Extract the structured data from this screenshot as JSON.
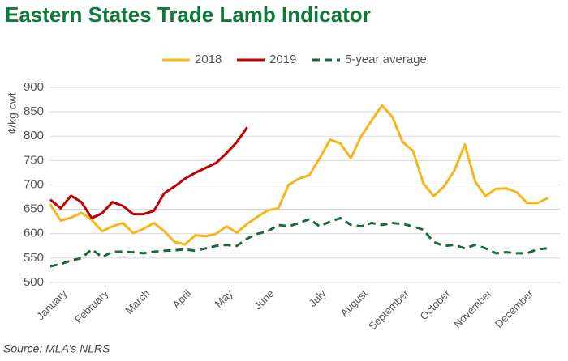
{
  "chart_data": {
    "type": "line",
    "title": "Eastern States Trade Lamb Indicator",
    "y_label": "¢/kg cwt",
    "source": "Source: MLA’s NLRS",
    "categories": [
      null,
      "January",
      null,
      null,
      null,
      "February",
      null,
      null,
      null,
      "March",
      null,
      null,
      null,
      "April",
      null,
      null,
      null,
      "May",
      null,
      null,
      null,
      "June",
      null,
      null,
      null,
      null,
      "July",
      null,
      null,
      null,
      "August",
      null,
      null,
      null,
      "September",
      null,
      null,
      null,
      "October",
      null,
      null,
      null,
      "November",
      null,
      null,
      null,
      "December",
      null,
      null
    ],
    "series": [
      {
        "name": "2018",
        "color": "#f5b51b",
        "style": "solid",
        "values": [
          660,
          627,
          633,
          643,
          628,
          605,
          615,
          622,
          601,
          610,
          622,
          605,
          583,
          578,
          597,
          595,
          600,
          615,
          602,
          620,
          635,
          648,
          652,
          700,
          713,
          720,
          755,
          793,
          785,
          755,
          800,
          832,
          863,
          840,
          788,
          770,
          703,
          677,
          697,
          730,
          783,
          707,
          677,
          692,
          693,
          685,
          663,
          663,
          673
        ]
      },
      {
        "name": "2019",
        "color": "#c00000",
        "style": "solid",
        "values": [
          670,
          652,
          678,
          665,
          632,
          642,
          665,
          657,
          640,
          640,
          647,
          683,
          697,
          713,
          725,
          735,
          745,
          765,
          788,
          818,
          null,
          null,
          null,
          null,
          null,
          null,
          null,
          null,
          null,
          null,
          null,
          null,
          null,
          null,
          null,
          null,
          null,
          null,
          null,
          null,
          null,
          null,
          null,
          null,
          null,
          null,
          null,
          null,
          null
        ]
      },
      {
        "name": "5-year average",
        "color": "#1a6b3c",
        "style": "dashed",
        "values": [
          533,
          538,
          545,
          550,
          568,
          552,
          563,
          563,
          562,
          560,
          563,
          565,
          566,
          568,
          565,
          570,
          575,
          577,
          575,
          590,
          600,
          605,
          618,
          615,
          622,
          630,
          615,
          625,
          632,
          618,
          615,
          622,
          618,
          622,
          620,
          615,
          608,
          583,
          575,
          577,
          570,
          577,
          570,
          560,
          562,
          560,
          560,
          568,
          570
        ]
      }
    ],
    "ylim": [
      500,
      900
    ],
    "yticks": [
      500,
      550,
      600,
      650,
      700,
      750,
      800,
      850,
      900
    ],
    "grid": true,
    "legend": "top"
  }
}
